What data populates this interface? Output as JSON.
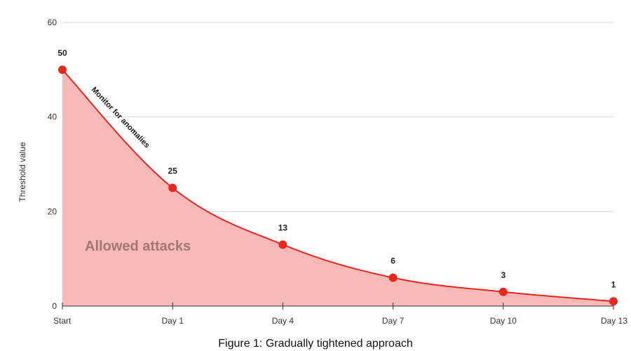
{
  "caption": "Figure 1: Gradually tightened approach",
  "colors": {
    "line": "#e8271f",
    "area": "#f8bab6",
    "marker": "#e8271f",
    "grid": "#d6d6d6"
  },
  "chart_data": {
    "type": "area",
    "categories": [
      "Start",
      "Day 1",
      "Day 4",
      "Day 7",
      "Day 10",
      "Day 13"
    ],
    "values": [
      50,
      25,
      13,
      6,
      3,
      1
    ],
    "data_labels": [
      "50",
      "25",
      "13",
      "6",
      "3",
      "1"
    ],
    "xlabel": "",
    "ylabel": "Threshold value",
    "ylim": [
      0,
      60
    ],
    "yticks": [
      0,
      20,
      40,
      60
    ],
    "ytick_labels": [
      "0",
      "20",
      "40",
      "60"
    ],
    "grid": true,
    "legend": "none",
    "annotations": {
      "area": "Allowed attacks",
      "line": "Monitor for anomalies"
    }
  }
}
